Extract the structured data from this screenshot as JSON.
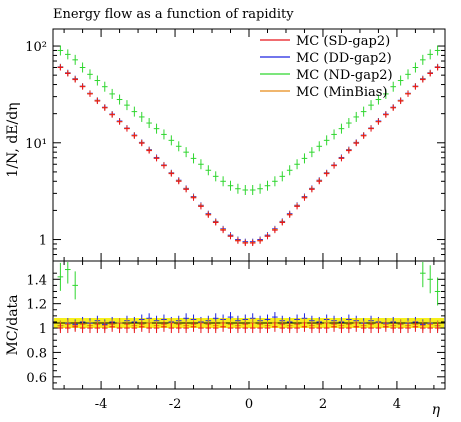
{
  "chart_data": {
    "type": "scatter",
    "title": "Energy flow as a function of rapidity",
    "xlabel": "η",
    "ylabel": "1/N, dE/dη",
    "ratio_ylabel": "MC/data",
    "xlim": [
      -5.3,
      5.3
    ],
    "ylim": [
      0.6,
      150
    ],
    "yscale": "log",
    "ratio_ylim": [
      0.5,
      1.55
    ],
    "x_ticks": [
      "-4",
      "-2",
      "0",
      "2",
      "4"
    ],
    "x_tick_values": [
      -4,
      -2,
      0,
      2,
      4
    ],
    "y_ticks": [
      "1",
      "10¹",
      "10²"
    ],
    "y_tick_values": [
      1,
      10,
      100
    ],
    "ratio_ticks": [
      "0.6",
      "0.8",
      "1",
      "1.2",
      "1.4"
    ],
    "ratio_tick_values": [
      0.6,
      0.8,
      1.0,
      1.2,
      1.4
    ],
    "legend_position": "top-right",
    "grid": false,
    "eta_points": [
      -5.1,
      -4.9,
      -4.7,
      -4.5,
      -4.3,
      -4.1,
      -3.9,
      -3.7,
      -3.5,
      -3.3,
      -3.1,
      -2.9,
      -2.7,
      -2.5,
      -2.3,
      -2.1,
      -1.9,
      -1.7,
      -1.5,
      -1.3,
      -1.1,
      -0.9,
      -0.7,
      -0.5,
      -0.3,
      -0.1,
      0.1,
      0.3,
      0.5,
      0.7,
      0.9,
      1.1,
      1.3,
      1.5,
      1.7,
      1.9,
      2.1,
      2.3,
      2.5,
      2.7,
      2.9,
      3.1,
      3.3,
      3.5,
      3.7,
      3.9,
      4.1,
      4.3,
      4.5,
      4.7,
      4.9,
      5.1
    ],
    "series": [
      {
        "name": "MC (SD-gap2)",
        "color": "#e8151b",
        "values": [
          60,
          52,
          45,
          38,
          32,
          27,
          23,
          19.5,
          16.5,
          14,
          11.8,
          9.9,
          8.3,
          6.9,
          5.8,
          4.8,
          4.0,
          3.3,
          2.7,
          2.2,
          1.8,
          1.5,
          1.25,
          1.08,
          0.97,
          0.92,
          0.92,
          0.97,
          1.08,
          1.25,
          1.5,
          1.8,
          2.2,
          2.7,
          3.3,
          4.0,
          4.8,
          5.8,
          6.9,
          8.3,
          9.9,
          11.8,
          14,
          16.5,
          19.5,
          23,
          27,
          32,
          38,
          45,
          52,
          60
        ],
        "ratio": [
          1.0,
          1.0,
          1.01,
          1.0,
          1.0,
          1.0,
          1.0,
          1.01,
          1.0,
          1.0,
          1.0,
          1.01,
          1.0,
          1.0,
          1.01,
          1.0,
          1.0,
          1.0,
          1.01,
          1.0,
          1.0,
          1.0,
          1.01,
          1.0,
          1.0,
          1.0,
          1.0,
          1.0,
          1.0,
          1.01,
          1.0,
          1.0,
          1.0,
          1.01,
          1.0,
          1.0,
          1.0,
          1.01,
          1.0,
          1.0,
          1.01,
          1.0,
          1.0,
          1.0,
          1.01,
          1.0,
          1.0,
          1.0,
          1.01,
          1.0,
          1.0,
          1.0
        ]
      },
      {
        "name": "MC (DD-gap2)",
        "color": "#1f24e0",
        "values": [
          61,
          53,
          46,
          38.5,
          32.5,
          27.5,
          23.3,
          19.8,
          16.8,
          14.2,
          12.0,
          10.1,
          8.5,
          7.05,
          5.9,
          4.9,
          4.1,
          3.38,
          2.78,
          2.26,
          1.85,
          1.54,
          1.29,
          1.11,
          1.0,
          0.95,
          0.95,
          1.0,
          1.11,
          1.29,
          1.54,
          1.85,
          2.26,
          2.78,
          3.38,
          4.1,
          4.9,
          5.9,
          7.05,
          8.5,
          10.1,
          12.0,
          14.2,
          16.8,
          19.8,
          23.3,
          27.5,
          32.5,
          38.5,
          46,
          53,
          61
        ],
        "ratio": [
          1.02,
          1.04,
          1.03,
          1.05,
          1.04,
          1.06,
          1.03,
          1.05,
          1.04,
          1.06,
          1.05,
          1.07,
          1.08,
          1.06,
          1.07,
          1.05,
          1.06,
          1.08,
          1.07,
          1.05,
          1.06,
          1.08,
          1.07,
          1.09,
          1.06,
          1.07,
          1.08,
          1.06,
          1.07,
          1.09,
          1.06,
          1.05,
          1.07,
          1.08,
          1.06,
          1.05,
          1.07,
          1.06,
          1.05,
          1.07,
          1.06,
          1.04,
          1.06,
          1.05,
          1.04,
          1.05,
          1.03,
          1.04,
          1.05,
          1.03,
          1.04,
          1.02
        ]
      },
      {
        "name": "MC (ND-gap2)",
        "color": "#2fd62f",
        "values": [
          90,
          82,
          72,
          60,
          51,
          44,
          38,
          32,
          28,
          24.5,
          21,
          18.5,
          16,
          14,
          12.2,
          10.6,
          9.2,
          8.0,
          6.9,
          6.0,
          5.2,
          4.5,
          4.0,
          3.6,
          3.35,
          3.25,
          3.25,
          3.35,
          3.6,
          4.0,
          4.5,
          5.2,
          6.0,
          6.9,
          8.0,
          9.2,
          10.6,
          12.2,
          14,
          16,
          18.5,
          21,
          24.5,
          28,
          32,
          38,
          44,
          51,
          60,
          72,
          82,
          90
        ],
        "ratio": [
          1.42,
          1.48,
          1.35,
          null,
          null,
          null,
          null,
          null,
          null,
          null,
          null,
          null,
          null,
          null,
          null,
          null,
          null,
          null,
          null,
          null,
          null,
          null,
          null,
          null,
          null,
          null,
          null,
          null,
          null,
          null,
          null,
          null,
          null,
          null,
          null,
          null,
          null,
          null,
          null,
          null,
          null,
          null,
          null,
          null,
          null,
          null,
          null,
          null,
          null,
          1.45,
          1.4,
          1.3
        ]
      },
      {
        "name": "MC (MinBias)",
        "color": "#e88a17",
        "values": [
          60.5,
          52.5,
          45.5,
          38.3,
          32.3,
          27.3,
          23.1,
          19.6,
          16.6,
          14.1,
          11.9,
          10.0,
          8.4,
          6.95,
          5.85,
          4.85,
          4.05,
          3.34,
          2.74,
          2.23,
          1.82,
          1.52,
          1.27,
          1.09,
          0.98,
          0.93,
          0.93,
          0.98,
          1.09,
          1.27,
          1.52,
          1.82,
          2.23,
          2.74,
          3.34,
          4.05,
          4.85,
          5.85,
          6.95,
          8.4,
          10.0,
          11.9,
          14.1,
          16.6,
          19.6,
          23.1,
          27.3,
          32.3,
          38.3,
          45.5,
          52.5,
          60.5
        ],
        "ratio": [
          1.02,
          1.03,
          1.02,
          1.03,
          1.02,
          1.03,
          1.02,
          1.03,
          1.04,
          1.03,
          1.02,
          1.03,
          1.04,
          1.02,
          1.03,
          1.04,
          1.03,
          1.02,
          1.03,
          1.04,
          1.03,
          1.02,
          1.04,
          1.03,
          1.02,
          1.03,
          1.04,
          1.03,
          1.02,
          1.04,
          1.03,
          1.02,
          1.03,
          1.04,
          1.02,
          1.03,
          1.04,
          1.03,
          1.02,
          1.03,
          1.04,
          1.02,
          1.03,
          1.04,
          1.03,
          1.02,
          1.03,
          1.02,
          1.03,
          1.02,
          1.03,
          1.02
        ]
      }
    ]
  }
}
